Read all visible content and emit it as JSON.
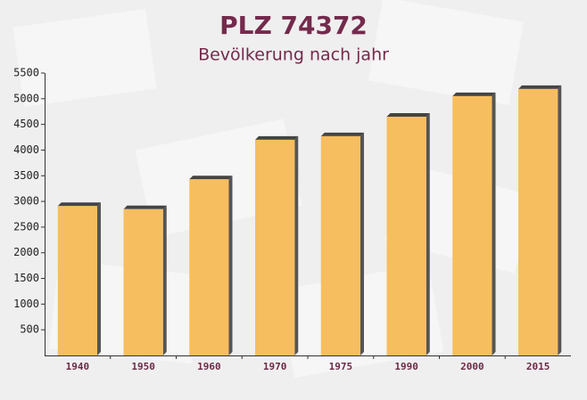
{
  "chart_data": {
    "type": "bar",
    "title": "PLZ 74372",
    "subtitle": "Bevölkerung nach jahr",
    "categories": [
      "1940",
      "1950",
      "1960",
      "1970",
      "1975",
      "1990",
      "2000",
      "2015"
    ],
    "values": [
      2910,
      2850,
      3430,
      4200,
      4270,
      4650,
      5050,
      5190
    ],
    "color": "#f7be5f",
    "ylim": [
      0,
      5500
    ],
    "yticks": [
      500,
      1000,
      1500,
      2000,
      2500,
      3000,
      3500,
      4000,
      4500,
      5000,
      5500
    ],
    "grid": false
  }
}
